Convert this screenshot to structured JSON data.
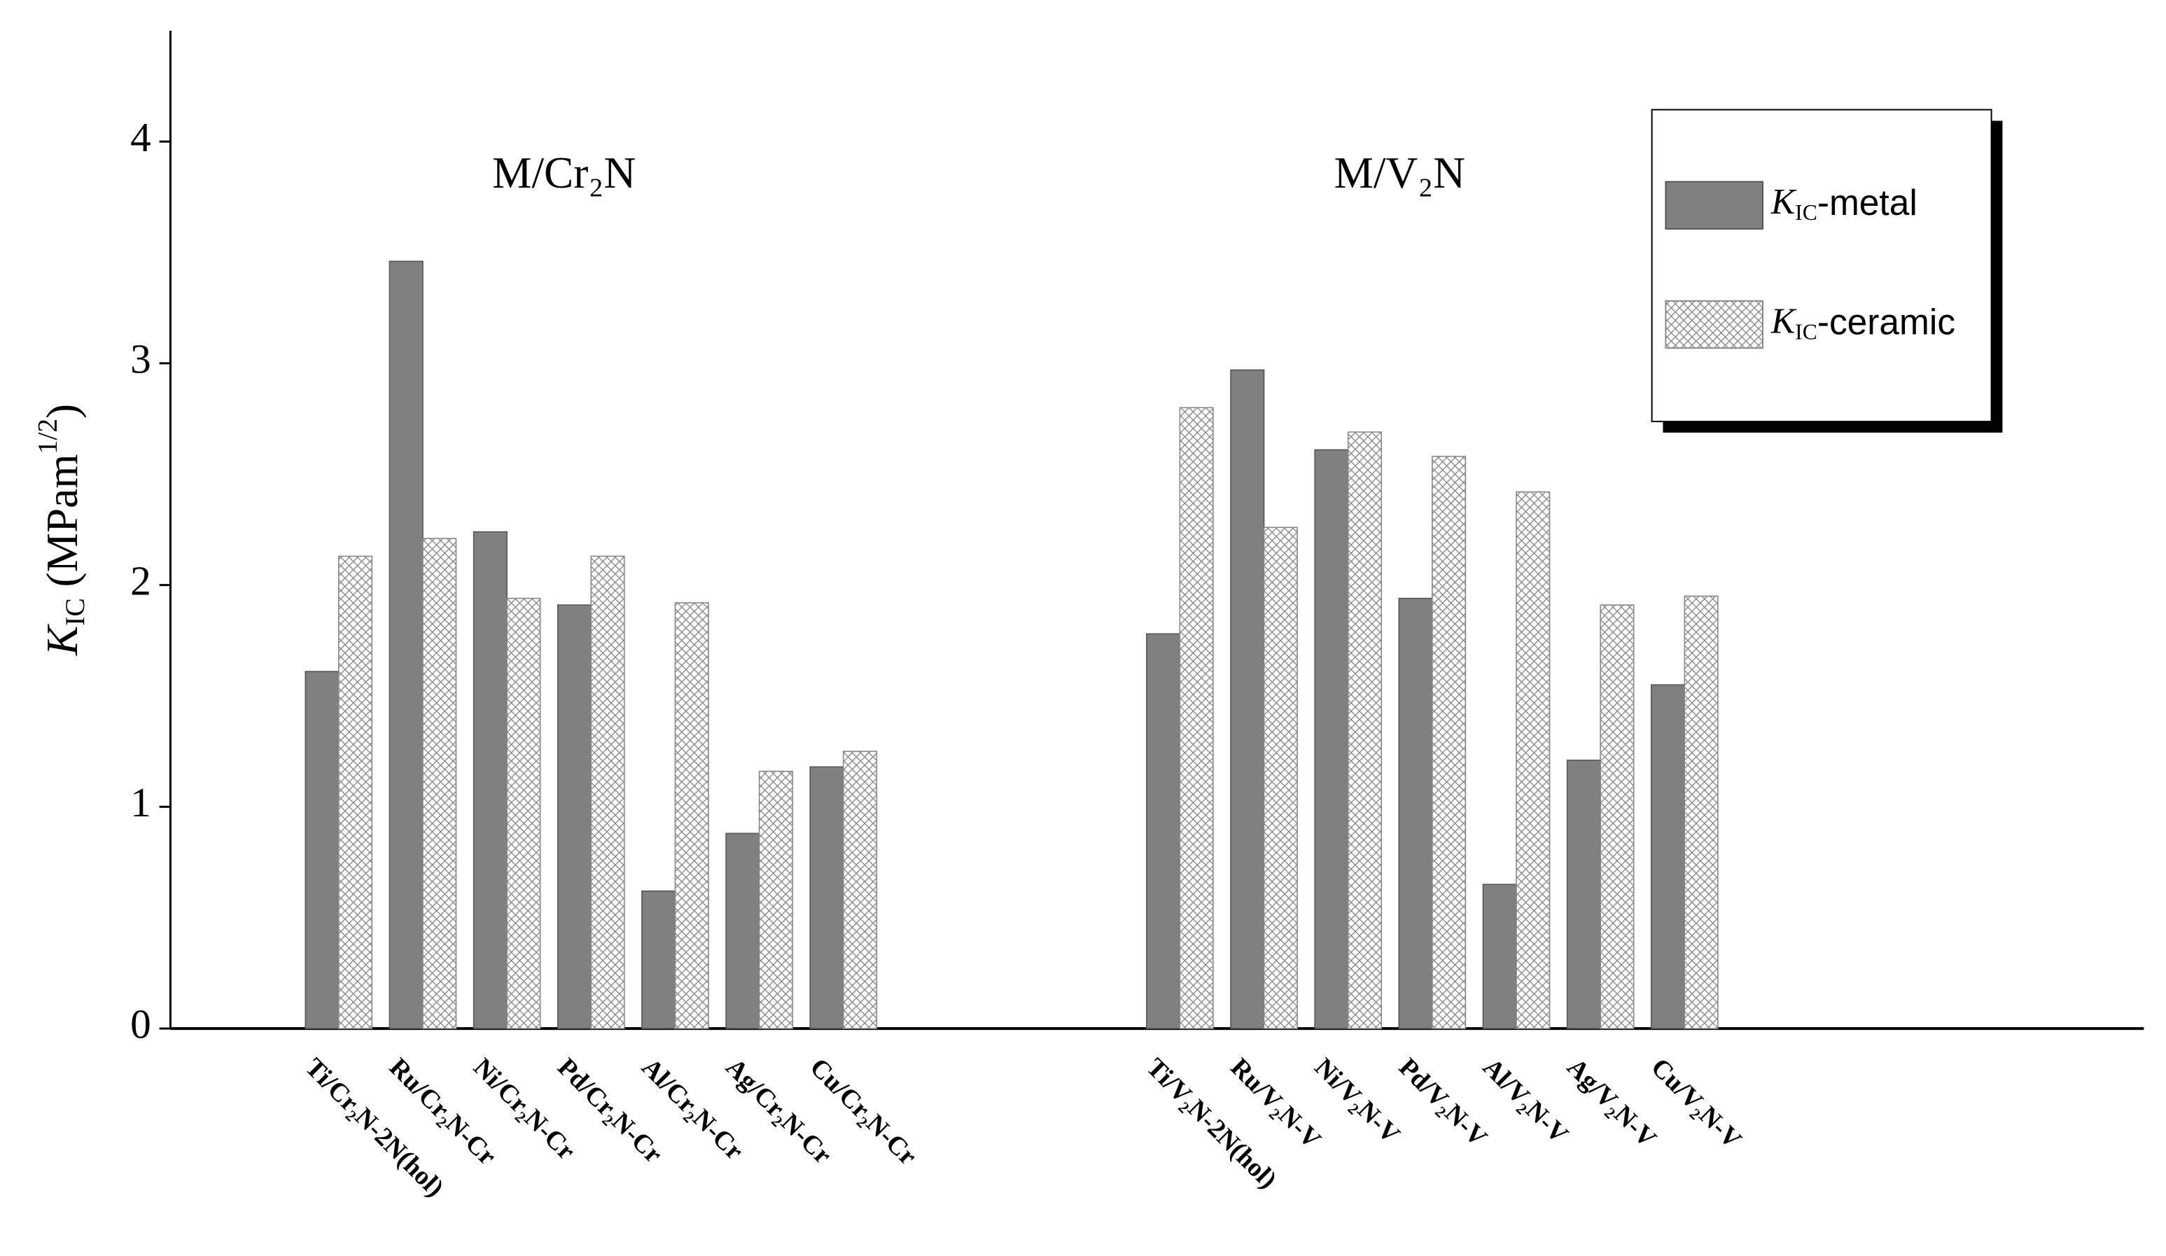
{
  "chart_data": {
    "type": "bar",
    "annotations": [
      "M/Cr₂N",
      "M/V₂N"
    ],
    "y_label": [
      "K",
      "IC",
      " (MPam",
      "1/2",
      ")"
    ],
    "categories": [
      "Ti/Cr₂N-2N(hol)",
      "Ru/Cr₂N-Cr",
      "Ni/Cr₂N-Cr",
      "Pd/Cr₂N-Cr",
      "Al/Cr₂N-Cr",
      "Ag/Cr₂N-Cr",
      "Cu/Cr₂N-Cr",
      null,
      null,
      null,
      "Ti/V₂N-2N(hol)",
      "Ru/V₂N-V",
      "Ni/V₂N-V",
      "Pd/V₂N-V",
      "Al/V₂N-V",
      "Ag/V₂N-V",
      "Cu/V₂N-V"
    ],
    "series": [
      {
        "name": [
          "K",
          "IC",
          "-metal"
        ],
        "color": "#808080",
        "hatch": false,
        "values": [
          1.61,
          3.46,
          2.24,
          1.91,
          0.62,
          0.88,
          1.18,
          null,
          null,
          null,
          1.78,
          2.97,
          2.61,
          1.94,
          0.65,
          1.21,
          1.55
        ]
      },
      {
        "name": [
          "K",
          "IC",
          "-ceramic"
        ],
        "color": "#ffffff",
        "hatch": true,
        "values": [
          2.13,
          2.21,
          1.94,
          2.13,
          1.92,
          1.16,
          1.25,
          null,
          null,
          null,
          2.8,
          2.26,
          2.69,
          2.58,
          2.42,
          1.91,
          1.95
        ]
      }
    ],
    "ylim": [
      0,
      4.5
    ],
    "yticks": [
      0,
      1,
      2,
      3,
      4
    ],
    "legend": "upper right"
  }
}
